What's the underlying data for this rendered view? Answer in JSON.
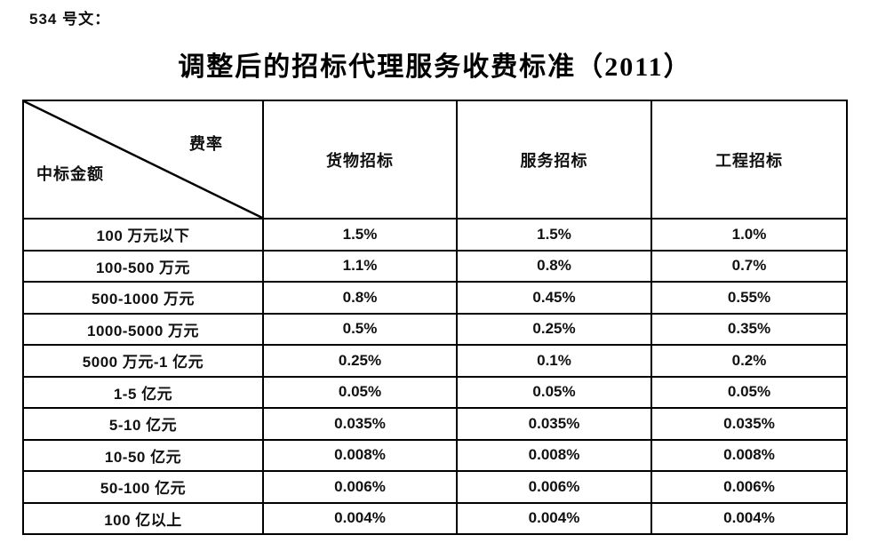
{
  "page": {
    "doc_label": "534 号文：",
    "title": "调整后的招标代理服务收费标准（2011）"
  },
  "table": {
    "corner": {
      "top_right_label": "费率",
      "bottom_left_label": "中标金额"
    },
    "columns": [
      "货物招标",
      "服务招标",
      "工程招标"
    ],
    "rows": [
      {
        "label": "100 万元以下",
        "values": [
          "1.5%",
          "1.5%",
          "1.0%"
        ]
      },
      {
        "label": "100-500 万元",
        "values": [
          "1.1%",
          "0.8%",
          "0.7%"
        ]
      },
      {
        "label": "500-1000 万元",
        "values": [
          "0.8%",
          "0.45%",
          "0.55%"
        ]
      },
      {
        "label": "1000-5000 万元",
        "values": [
          "0.5%",
          "0.25%",
          "0.35%"
        ]
      },
      {
        "label": "5000 万元-1 亿元",
        "values": [
          "0.25%",
          "0.1%",
          "0.2%"
        ]
      },
      {
        "label": "1-5 亿元",
        "values": [
          "0.05%",
          "0.05%",
          "0.05%"
        ]
      },
      {
        "label": "5-10 亿元",
        "values": [
          "0.035%",
          "0.035%",
          "0.035%"
        ]
      },
      {
        "label": "10-50 亿元",
        "values": [
          "0.008%",
          "0.008%",
          "0.008%"
        ]
      },
      {
        "label": "50-100 亿元",
        "values": [
          "0.006%",
          "0.006%",
          "0.006%"
        ]
      },
      {
        "label": "100 亿以上",
        "values": [
          "0.004%",
          "0.004%",
          "0.004%"
        ]
      }
    ]
  },
  "colors": {
    "text": "#111111",
    "border": "#000000",
    "background": "#ffffff"
  }
}
